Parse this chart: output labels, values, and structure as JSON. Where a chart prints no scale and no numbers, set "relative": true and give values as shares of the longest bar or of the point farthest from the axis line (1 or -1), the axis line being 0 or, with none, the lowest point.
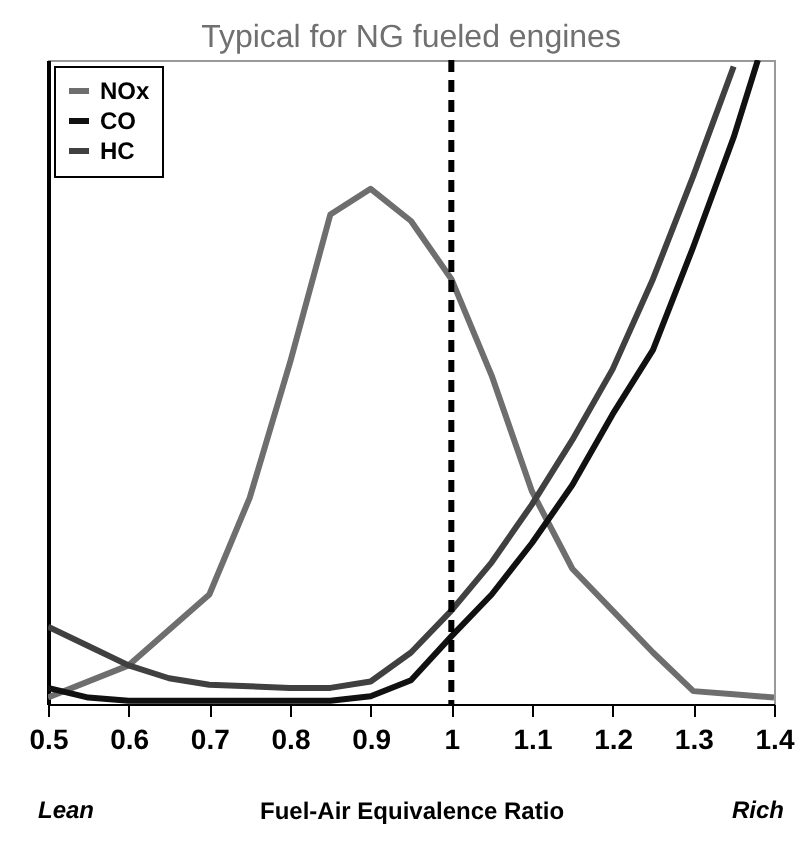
{
  "chart_data": {
    "type": "line",
    "title": "Typical for NG fueled engines",
    "xlabel": "Fuel-Air Equivalence Ratio",
    "annotations": [
      "Lean",
      "Rich"
    ],
    "relative": true,
    "xlim": [
      0.5,
      1.4
    ],
    "xticks": [
      0.5,
      0.6,
      0.7,
      0.8,
      0.9,
      1,
      1.1,
      1.2,
      1.3,
      1.4
    ],
    "grid": false,
    "legend": "top left",
    "marker": "none",
    "line_style": "solid",
    "ref_lines": [
      {
        "axis": "x",
        "value": 1,
        "color": "#000000",
        "line_style": "dashed"
      }
    ],
    "series": [
      {
        "name": "NOx",
        "color": "#6e6e6e",
        "x": [
          0.5,
          0.6,
          0.7,
          0.75,
          0.8,
          0.85,
          0.9,
          0.95,
          1.0,
          1.05,
          1.1,
          1.15,
          1.2,
          1.25,
          1.3,
          1.35,
          1.4
        ],
        "values": [
          0.01,
          0.06,
          0.17,
          0.32,
          0.53,
          0.76,
          0.8,
          0.75,
          0.66,
          0.51,
          0.33,
          0.21,
          0.145,
          0.08,
          0.02,
          0.015,
          0.01
        ]
      },
      {
        "name": "CO",
        "color": "#111111",
        "x": [
          0.5,
          0.55,
          0.6,
          0.7,
          0.8,
          0.85,
          0.9,
          0.95,
          1.0,
          1.05,
          1.1,
          1.15,
          1.2,
          1.25,
          1.3,
          1.35,
          1.38
        ],
        "values": [
          0.025,
          0.01,
          0.005,
          0.005,
          0.005,
          0.005,
          0.012,
          0.037,
          0.105,
          0.17,
          0.25,
          0.34,
          0.45,
          0.55,
          0.71,
          0.88,
          1.0
        ]
      },
      {
        "name": "HC",
        "color": "#404040",
        "x": [
          0.5,
          0.55,
          0.6,
          0.65,
          0.7,
          0.8,
          0.85,
          0.9,
          0.95,
          1.0,
          1.05,
          1.1,
          1.15,
          1.2,
          1.25,
          1.3,
          1.35
        ],
        "values": [
          0.12,
          0.09,
          0.06,
          0.04,
          0.03,
          0.025,
          0.025,
          0.035,
          0.08,
          0.145,
          0.22,
          0.31,
          0.41,
          0.52,
          0.66,
          0.82,
          0.99
        ]
      }
    ]
  }
}
